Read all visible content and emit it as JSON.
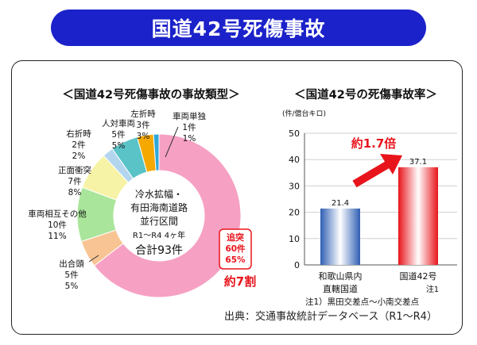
{
  "page_title": "国道42号死傷事故",
  "source": "出典：交通事故統計データベース（R1～R4）",
  "chart_data": [
    {
      "type": "pie",
      "title": "＜国道42号死傷事故の事故類型＞",
      "center_text": [
        "冷水拡幅・",
        "有田海南道路",
        "並行区間",
        "R1～R4 4ヶ年",
        "合計93件"
      ],
      "slices": [
        {
          "label": "追突",
          "count": "60件",
          "pct": "65%",
          "value": 60,
          "color": "#f6a0c4"
        },
        {
          "label": "出合頭",
          "count": "5件",
          "pct": "5%",
          "value": 5,
          "color": "#f8c493"
        },
        {
          "label": "車両相互その他",
          "count": "10件",
          "pct": "11%",
          "value": 10,
          "color": "#a9e59a"
        },
        {
          "label": "正面衝突",
          "count": "7件",
          "pct": "8%",
          "value": 7,
          "color": "#f6f3a6"
        },
        {
          "label": "右折時",
          "count": "2件",
          "pct": "2%",
          "value": 2,
          "color": "#b3d6ee"
        },
        {
          "label": "人対車両",
          "count": "5件",
          "pct": "5%",
          "value": 5,
          "color": "#5ac3c7"
        },
        {
          "label": "左折時",
          "count": "3件",
          "pct": "3%",
          "value": 3,
          "color": "#f5a800"
        },
        {
          "label": "車両単独",
          "count": "1件",
          "pct": "1%",
          "value": 1,
          "color": "#2ea8d8"
        }
      ],
      "annotation": "約7割"
    },
    {
      "type": "bar",
      "title": "＜国道42号の死傷事故率＞",
      "ylabel": "(件/億台キロ)",
      "ylim": [
        0,
        50
      ],
      "yticks": [
        "0",
        "10",
        "20",
        "30",
        "40",
        "50"
      ],
      "categories": [
        {
          "lines": [
            "和歌山県内",
            "直轄国道"
          ],
          "note": ""
        },
        {
          "lines": [
            "国道42号"
          ],
          "note": "注1"
        }
      ],
      "values": [
        21.4,
        37.1
      ],
      "value_labels": [
        "21.4",
        "37.1"
      ],
      "bar_colors": [
        "#3a6fc0",
        "#e8141c"
      ],
      "annotation": "約1.7倍",
      "footnote": "注1）黒田交差点～小南交差点"
    }
  ]
}
